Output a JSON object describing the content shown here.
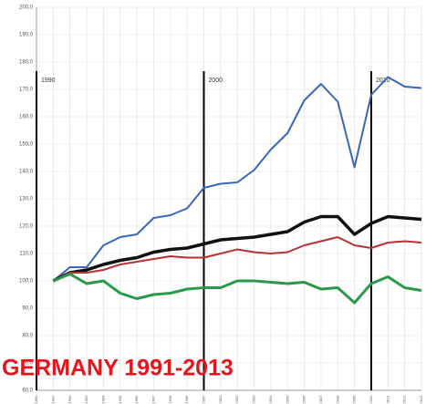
{
  "chart_data": {
    "type": "line",
    "title": "GERMANY 1991-2013",
    "x": [
      1991,
      1992,
      1993,
      1994,
      1995,
      1996,
      1997,
      1998,
      1999,
      2000,
      2001,
      2002,
      2003,
      2004,
      2005,
      2006,
      2007,
      2008,
      2009,
      2010,
      2011,
      2012,
      2013
    ],
    "series": [
      {
        "color": "#3a66b8",
        "width": 2,
        "values": [
          100,
          105,
          105,
          113,
          116,
          117,
          123,
          124,
          126.5,
          134,
          135.5,
          136,
          140.5,
          148,
          154,
          166,
          172,
          165.5,
          141.5,
          168,
          174.5,
          171,
          170.5
        ]
      },
      {
        "color": "#111111",
        "width": 3.5,
        "values": [
          100,
          103,
          104,
          106,
          107.5,
          108.5,
          110.5,
          111.5,
          112,
          113.5,
          115,
          115.5,
          116,
          117,
          118,
          121.5,
          123.5,
          123.5,
          117,
          121,
          123.5,
          123,
          122.5
        ]
      },
      {
        "color": "#b83232",
        "width": 2,
        "values": [
          100,
          103,
          103,
          104,
          106,
          107,
          108,
          109,
          108.5,
          108.5,
          110,
          111.5,
          110.5,
          110,
          110.5,
          113,
          114.5,
          116,
          113,
          112,
          114,
          114.5,
          114
        ]
      },
      {
        "color": "#2a9a48",
        "width": 3,
        "values": [
          100,
          102.5,
          99,
          100,
          95.5,
          93.5,
          95,
          95.5,
          97,
          97.5,
          97.5,
          100,
          100,
          99.5,
          99,
          99.5,
          97,
          97.5,
          92,
          99,
          101.5,
          97.5,
          96.5
        ]
      }
    ],
    "markers": [
      1990,
      2000,
      2010
    ],
    "xlim": [
      1990,
      2013
    ],
    "xticks": [
      1990,
      1991,
      1992,
      1993,
      1994,
      1995,
      1996,
      1997,
      1998,
      1999,
      2000,
      2001,
      2002,
      2003,
      2004,
      2005,
      2006,
      2007,
      2008,
      2009,
      2010,
      2011,
      2012,
      2013
    ],
    "ylim": [
      60,
      200
    ],
    "yticks": [
      {
        "value": 60,
        "label": "60,0"
      },
      {
        "value": 70,
        "label": "70,0"
      },
      {
        "value": 80,
        "label": "80,0"
      },
      {
        "value": 90,
        "label": "90,0"
      },
      {
        "value": 100,
        "label": "100,0"
      },
      {
        "value": 110,
        "label": "110,0"
      },
      {
        "value": 120,
        "label": "120,0"
      },
      {
        "value": 130,
        "label": "130,0"
      },
      {
        "value": 140,
        "label": "140,0"
      },
      {
        "value": 150,
        "label": "150,0"
      },
      {
        "value": 160,
        "label": "160,0"
      },
      {
        "value": 170,
        "label": "170,0"
      },
      {
        "value": 180,
        "label": "180,0"
      },
      {
        "value": 190,
        "label": "190,0"
      },
      {
        "value": 200,
        "label": "200,0"
      }
    ],
    "grid": true
  }
}
